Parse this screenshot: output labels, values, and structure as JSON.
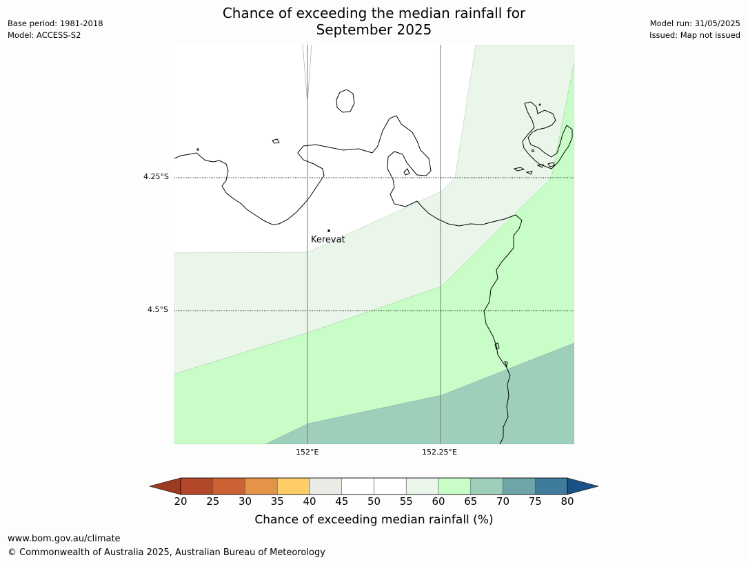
{
  "title_line1": "Chance of exceeding the median rainfall for",
  "title_line2": "September 2025",
  "meta": {
    "base_period": "Base period: 1981-2018",
    "model": "Model: ACCESS-S2",
    "model_run": "Model run: 31/05/2025",
    "issued": "Issued: Map not issued"
  },
  "map": {
    "lat_labels": [
      "4.25°S",
      "4.5°S"
    ],
    "lon_labels": [
      "152°E",
      "152.25°E"
    ],
    "place": "Kerevat"
  },
  "colorbar": {
    "label": "Chance of exceeding median rainfall (%)",
    "ticks": [
      "20",
      "25",
      "30",
      "35",
      "40",
      "45",
      "50",
      "55",
      "60",
      "65",
      "70",
      "75",
      "80"
    ],
    "colors": [
      "#b2472a",
      "#cc6233",
      "#e39447",
      "#fecd66",
      "#ebebe6",
      "#ffffff",
      "#ffffff",
      "#eaf6ea",
      "#c9fdc8",
      "#9ecfba",
      "#6fa5a6",
      "#3f7b9b"
    ],
    "under_color": "#9a3b22",
    "over_color": "#1b5189"
  },
  "footer": {
    "url": "www.bom.gov.au/climate",
    "copyright": "© Commonwealth of Australia 2025, Australian Bureau of Meteorology"
  }
}
